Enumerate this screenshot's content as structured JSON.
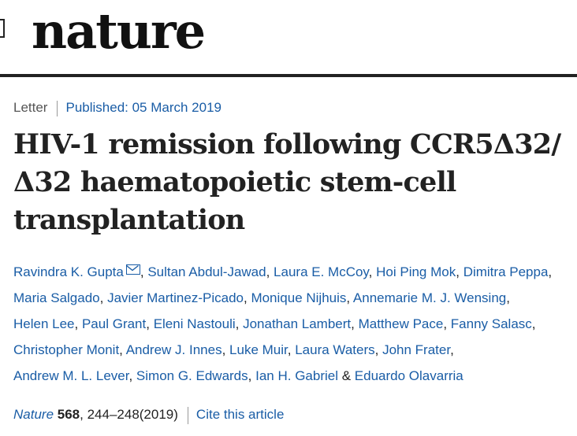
{
  "header": {
    "logo": "nature"
  },
  "meta": {
    "type": "Letter",
    "published": "Published: 05 March 2019"
  },
  "article": {
    "title": "HIV-1 remission following CCR5Δ32/Δ32 haematopoietic stem-cell transplantation"
  },
  "authors": [
    "Ravindra K. Gupta",
    "Sultan Abdul-Jawad",
    "Laura E. McCoy",
    "Hoi Ping Mok",
    "Dimitra Peppa",
    "Maria Salgado",
    "Javier Martinez-Picado",
    "Monique Nijhuis",
    "Annemarie M. J. Wensing",
    "Helen Lee",
    "Paul Grant",
    "Eleni Nastouli",
    "Jonathan Lambert",
    "Matthew Pace",
    "Fanny Salasc",
    "Christopher Monit",
    "Andrew J. Innes",
    "Luke Muir",
    "Laura Waters",
    "John Frater",
    "Andrew M. L. Lever",
    "Simon G. Edwards",
    "Ian H. Gabriel",
    "Eduardo Olavarria"
  ],
  "citation": {
    "journal": "Nature",
    "volume": "568",
    "pages": ", 244–248(2019)",
    "cite_label": "Cite this article"
  },
  "icons": {
    "corresponding_author": "envelope-icon"
  },
  "colors": {
    "link": "#1a5da6",
    "text": "#222222"
  }
}
